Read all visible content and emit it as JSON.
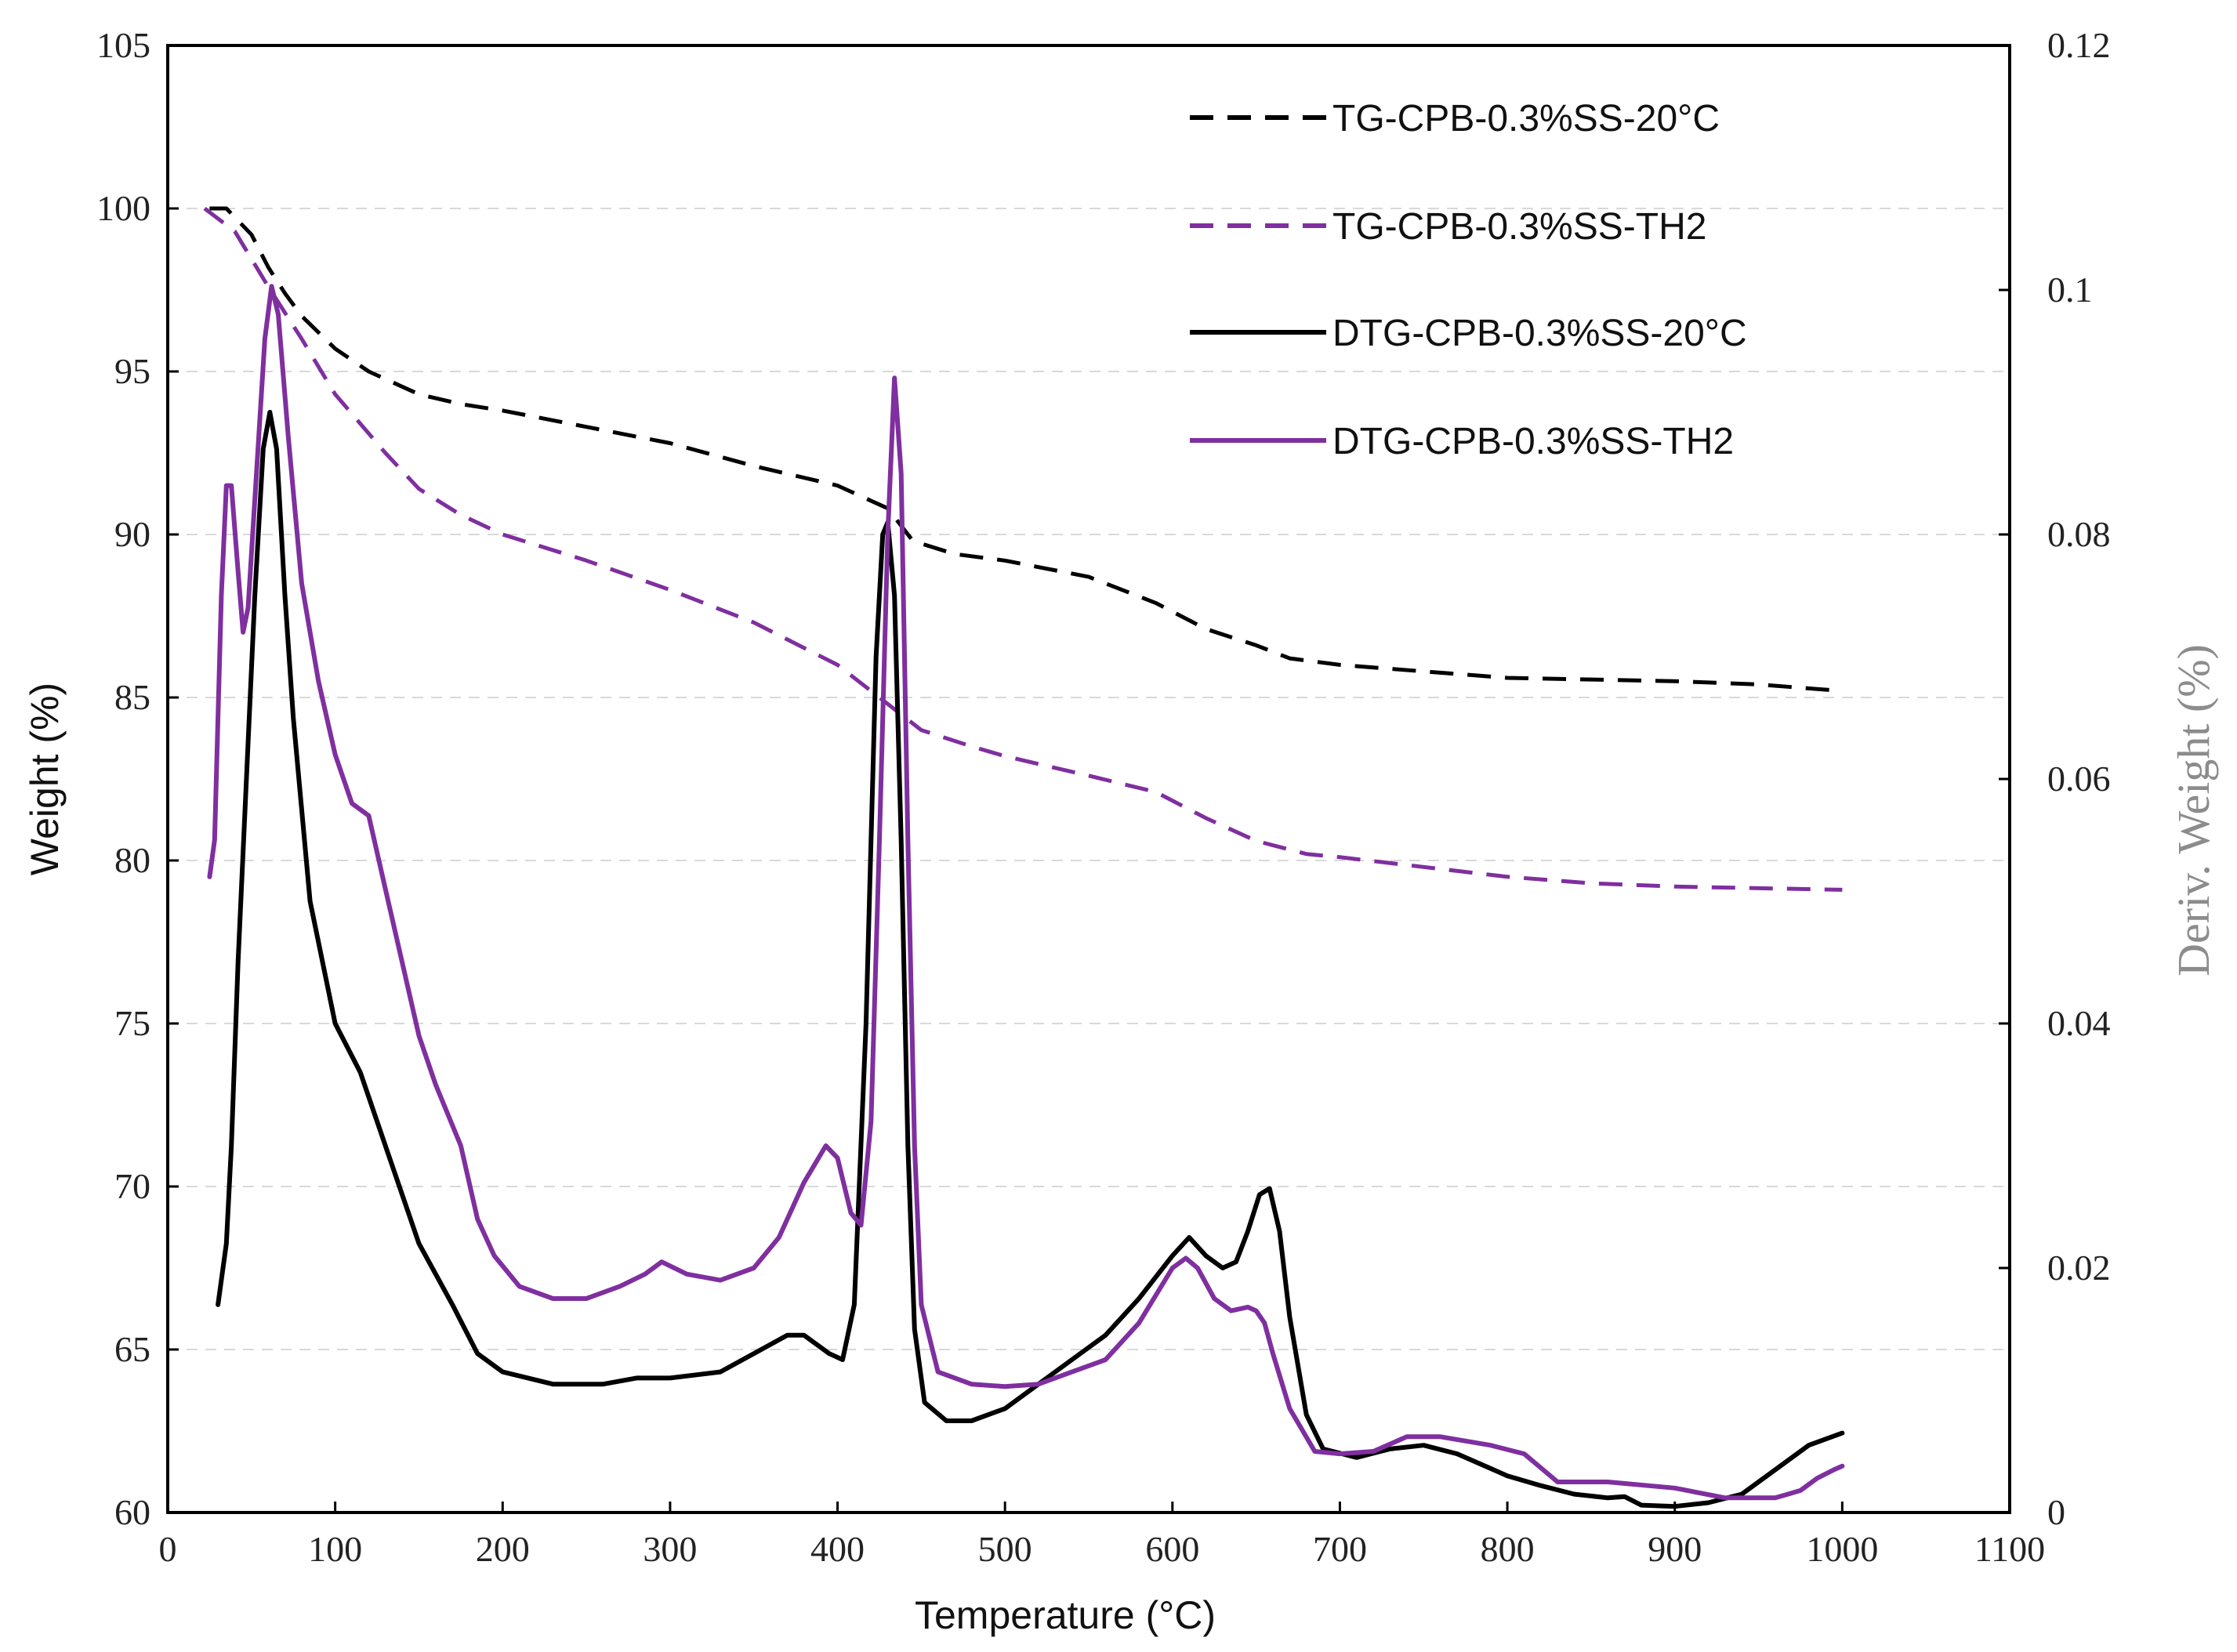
{
  "chart_data": {
    "type": "line",
    "title": "",
    "xlabel": "Temperature (°C)",
    "ylabel": "Weight (%)",
    "y2label": "Deriv. Weight (%)",
    "xlim": [
      0,
      1100
    ],
    "ylim": [
      60,
      105
    ],
    "y2lim": [
      0,
      0.12
    ],
    "x_ticks": [
      "0",
      "100",
      "200",
      "300",
      "400",
      "500",
      "600",
      "700",
      "800",
      "900",
      "1000",
      "1100"
    ],
    "y_ticks": [
      "60",
      "65",
      "70",
      "75",
      "80",
      "85",
      "90",
      "95",
      "100",
      "105"
    ],
    "y2_ticks": [
      "0",
      "0.02",
      "0.04",
      "0.06",
      "0.08",
      "0.1",
      "0.12"
    ],
    "grid": "horizontal dashed",
    "legend_position": "top-right",
    "series": [
      {
        "name": "TG-CPB-0.3%SS-20°C",
        "axis": "left",
        "style": "dashed",
        "color": "#000000",
        "points": [
          [
            25,
            100
          ],
          [
            35,
            100
          ],
          [
            50,
            99.2
          ],
          [
            60,
            98.2
          ],
          [
            70,
            97.4
          ],
          [
            80,
            96.7
          ],
          [
            100,
            95.7
          ],
          [
            120,
            95
          ],
          [
            150,
            94.3
          ],
          [
            175,
            94
          ],
          [
            200,
            93.8
          ],
          [
            250,
            93.3
          ],
          [
            300,
            92.8
          ],
          [
            350,
            92.1
          ],
          [
            400,
            91.5
          ],
          [
            430,
            90.8
          ],
          [
            445,
            89.8
          ],
          [
            470,
            89.4
          ],
          [
            500,
            89.2
          ],
          [
            550,
            88.7
          ],
          [
            590,
            87.9
          ],
          [
            620,
            87.1
          ],
          [
            650,
            86.6
          ],
          [
            670,
            86.2
          ],
          [
            700,
            86.0
          ],
          [
            750,
            85.8
          ],
          [
            800,
            85.6
          ],
          [
            900,
            85.5
          ],
          [
            950,
            85.4
          ],
          [
            1000,
            85.2
          ]
        ]
      },
      {
        "name": "TG-CPB-0.3%SS-TH2",
        "axis": "left",
        "style": "dashed",
        "color": "#7f2f9f",
        "points": [
          [
            22,
            100
          ],
          [
            40,
            99.3
          ],
          [
            60,
            97.6
          ],
          [
            80,
            96
          ],
          [
            100,
            94.3
          ],
          [
            130,
            92.5
          ],
          [
            150,
            91.4
          ],
          [
            175,
            90.6
          ],
          [
            200,
            90
          ],
          [
            250,
            89.2
          ],
          [
            300,
            88.3
          ],
          [
            350,
            87.3
          ],
          [
            400,
            86
          ],
          [
            430,
            84.8
          ],
          [
            450,
            84
          ],
          [
            480,
            83.5
          ],
          [
            500,
            83.2
          ],
          [
            550,
            82.6
          ],
          [
            590,
            82.1
          ],
          [
            620,
            81.3
          ],
          [
            650,
            80.6
          ],
          [
            680,
            80.2
          ],
          [
            700,
            80.1
          ],
          [
            750,
            79.8
          ],
          [
            800,
            79.5
          ],
          [
            850,
            79.3
          ],
          [
            900,
            79.2
          ],
          [
            1000,
            79.1
          ]
        ]
      },
      {
        "name": "DTG-CPB-0.3%SS-20°C",
        "axis": "right",
        "style": "solid",
        "color": "#000000",
        "points": [
          [
            30,
            0.017
          ],
          [
            35,
            0.022
          ],
          [
            38,
            0.03
          ],
          [
            42,
            0.045
          ],
          [
            47,
            0.06
          ],
          [
            52,
            0.075
          ],
          [
            57,
            0.087
          ],
          [
            61,
            0.09
          ],
          [
            65,
            0.087
          ],
          [
            70,
            0.075
          ],
          [
            75,
            0.065
          ],
          [
            85,
            0.05
          ],
          [
            100,
            0.04
          ],
          [
            115,
            0.036
          ],
          [
            130,
            0.03
          ],
          [
            150,
            0.022
          ],
          [
            170,
            0.017
          ],
          [
            185,
            0.013
          ],
          [
            200,
            0.0115
          ],
          [
            230,
            0.0105
          ],
          [
            260,
            0.0105
          ],
          [
            280,
            0.011
          ],
          [
            300,
            0.011
          ],
          [
            330,
            0.0115
          ],
          [
            350,
            0.013
          ],
          [
            370,
            0.0145
          ],
          [
            380,
            0.0145
          ],
          [
            395,
            0.013
          ],
          [
            403,
            0.0125
          ],
          [
            410,
            0.017
          ],
          [
            417,
            0.04
          ],
          [
            423,
            0.07
          ],
          [
            427,
            0.08
          ],
          [
            430,
            0.081
          ],
          [
            434,
            0.075
          ],
          [
            438,
            0.055
          ],
          [
            442,
            0.03
          ],
          [
            446,
            0.015
          ],
          [
            452,
            0.009
          ],
          [
            465,
            0.0075
          ],
          [
            480,
            0.0075
          ],
          [
            500,
            0.0085
          ],
          [
            520,
            0.0105
          ],
          [
            540,
            0.0125
          ],
          [
            560,
            0.0145
          ],
          [
            580,
            0.0175
          ],
          [
            600,
            0.021
          ],
          [
            610,
            0.0225
          ],
          [
            620,
            0.021
          ],
          [
            630,
            0.02
          ],
          [
            638,
            0.0205
          ],
          [
            645,
            0.023
          ],
          [
            652,
            0.026
          ],
          [
            658,
            0.0265
          ],
          [
            664,
            0.023
          ],
          [
            670,
            0.016
          ],
          [
            680,
            0.008
          ],
          [
            690,
            0.0052
          ],
          [
            710,
            0.0045
          ],
          [
            730,
            0.0052
          ],
          [
            750,
            0.0055
          ],
          [
            770,
            0.0048
          ],
          [
            800,
            0.003
          ],
          [
            820,
            0.0022
          ],
          [
            840,
            0.0015
          ],
          [
            860,
            0.0012
          ],
          [
            870,
            0.0013
          ],
          [
            880,
            0.0006
          ],
          [
            900,
            0.0005
          ],
          [
            920,
            0.0008
          ],
          [
            940,
            0.0015
          ],
          [
            960,
            0.0035
          ],
          [
            980,
            0.0055
          ],
          [
            1000,
            0.0065
          ]
        ]
      },
      {
        "name": "DTG-CPB-0.3%SS-TH2",
        "axis": "right",
        "style": "solid",
        "color": "#7f2f9f",
        "points": [
          [
            25,
            0.052
          ],
          [
            28,
            0.055
          ],
          [
            32,
            0.075
          ],
          [
            35,
            0.084
          ],
          [
            38,
            0.084
          ],
          [
            42,
            0.077
          ],
          [
            45,
            0.072
          ],
          [
            48,
            0.074
          ],
          [
            53,
            0.085
          ],
          [
            58,
            0.096
          ],
          [
            62,
            0.1003
          ],
          [
            66,
            0.098
          ],
          [
            72,
            0.088
          ],
          [
            80,
            0.076
          ],
          [
            90,
            0.068
          ],
          [
            100,
            0.062
          ],
          [
            110,
            0.058
          ],
          [
            120,
            0.057
          ],
          [
            130,
            0.051
          ],
          [
            140,
            0.045
          ],
          [
            150,
            0.039
          ],
          [
            160,
            0.035
          ],
          [
            175,
            0.03
          ],
          [
            185,
            0.024
          ],
          [
            195,
            0.021
          ],
          [
            210,
            0.0185
          ],
          [
            230,
            0.0175
          ],
          [
            250,
            0.0175
          ],
          [
            270,
            0.0185
          ],
          [
            285,
            0.0195
          ],
          [
            295,
            0.0205
          ],
          [
            310,
            0.0195
          ],
          [
            330,
            0.019
          ],
          [
            350,
            0.02
          ],
          [
            365,
            0.0225
          ],
          [
            380,
            0.027
          ],
          [
            393,
            0.03
          ],
          [
            400,
            0.029
          ],
          [
            408,
            0.0245
          ],
          [
            414,
            0.0235
          ],
          [
            420,
            0.032
          ],
          [
            425,
            0.055
          ],
          [
            430,
            0.08
          ],
          [
            434,
            0.0928
          ],
          [
            438,
            0.085
          ],
          [
            442,
            0.055
          ],
          [
            446,
            0.03
          ],
          [
            450,
            0.017
          ],
          [
            460,
            0.0115
          ],
          [
            480,
            0.0105
          ],
          [
            500,
            0.0103
          ],
          [
            520,
            0.0105
          ],
          [
            540,
            0.0115
          ],
          [
            560,
            0.0125
          ],
          [
            580,
            0.0155
          ],
          [
            600,
            0.02
          ],
          [
            608,
            0.0208
          ],
          [
            615,
            0.02
          ],
          [
            625,
            0.0175
          ],
          [
            635,
            0.0165
          ],
          [
            645,
            0.0168
          ],
          [
            650,
            0.0165
          ],
          [
            655,
            0.0155
          ],
          [
            660,
            0.013
          ],
          [
            670,
            0.0085
          ],
          [
            685,
            0.005
          ],
          [
            700,
            0.0048
          ],
          [
            720,
            0.005
          ],
          [
            740,
            0.0062
          ],
          [
            760,
            0.0062
          ],
          [
            790,
            0.0055
          ],
          [
            810,
            0.0048
          ],
          [
            830,
            0.0025
          ],
          [
            860,
            0.0025
          ],
          [
            900,
            0.002
          ],
          [
            930,
            0.0012
          ],
          [
            960,
            0.0012
          ],
          [
            975,
            0.0018
          ],
          [
            985,
            0.0028
          ],
          [
            995,
            0.0035
          ],
          [
            1000,
            0.0038
          ]
        ]
      }
    ]
  }
}
